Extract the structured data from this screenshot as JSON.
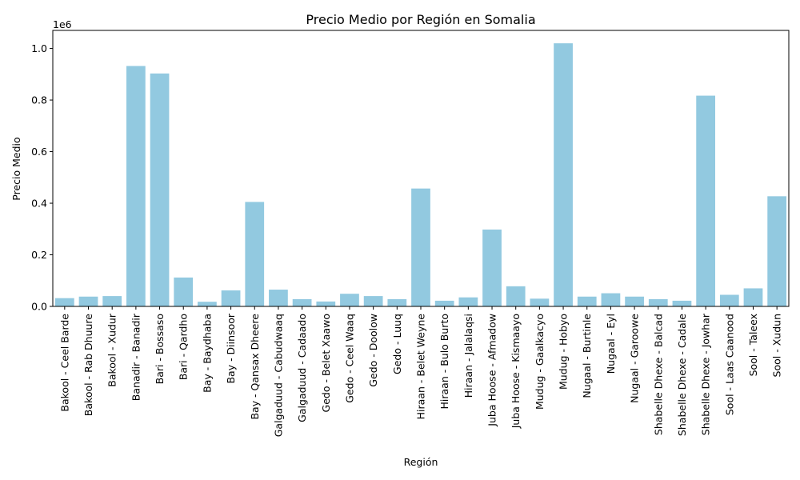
{
  "chart_data": {
    "type": "bar",
    "title": "Precio Medio por Región en Somalia",
    "xlabel": "Región",
    "ylabel": "Precio Medio",
    "y_offset_text": "1e6",
    "ylim": [
      0,
      1070000
    ],
    "yticks": [
      {
        "value": 0,
        "label": "0.0"
      },
      {
        "value": 200000,
        "label": "0.2"
      },
      {
        "value": 400000,
        "label": "0.4"
      },
      {
        "value": 600000,
        "label": "0.6"
      },
      {
        "value": 800000,
        "label": "0.8"
      },
      {
        "value": 1000000,
        "label": "1.0"
      }
    ],
    "bar_color": "#92c9e0",
    "grid": false,
    "categories": [
      "Bakool - Ceel Barde",
      "Bakool - Rab Dhuure",
      "Bakool - Xudur",
      "Banadir - Banadir",
      "Bari - Bossaso",
      "Bari - Qardho",
      "Bay - Baydhaba",
      "Bay - Diinsoor",
      "Bay - Qansax Dheere",
      "Galgaduud - Cabudwaaq",
      "Galgaduud - Cadaado",
      "Gedo - Belet Xaawo",
      "Gedo - Ceel Waaq",
      "Gedo - Doolow",
      "Gedo - Luuq",
      "Hiraan - Belet Weyne",
      "Hiraan - Bulo Burto",
      "Hiraan - Jalalaqsi",
      "Juba Hoose - Afmadow",
      "Juba Hoose - Kismaayo",
      "Mudug - Gaalkacyo",
      "Mudug - Hobyo",
      "Nugaal - Burtinle",
      "Nugaal - Eyl",
      "Nugaal - Garoowe",
      "Shabelle Dhexe - Balcad",
      "Shabelle Dhexe - Cadale",
      "Shabelle Dhexe - Jowhar",
      "Sool - Laas Caanood",
      "Sool - Taleex",
      "Sool - Xudun"
    ],
    "values": [
      32000,
      38000,
      40000,
      932000,
      903000,
      112000,
      18000,
      62000,
      405000,
      65000,
      28000,
      19000,
      49000,
      40000,
      28000,
      457000,
      22000,
      35000,
      298000,
      78000,
      30000,
      1020000,
      38000,
      51000,
      38000,
      28000,
      22000,
      817000,
      45000,
      70000,
      427000
    ]
  }
}
